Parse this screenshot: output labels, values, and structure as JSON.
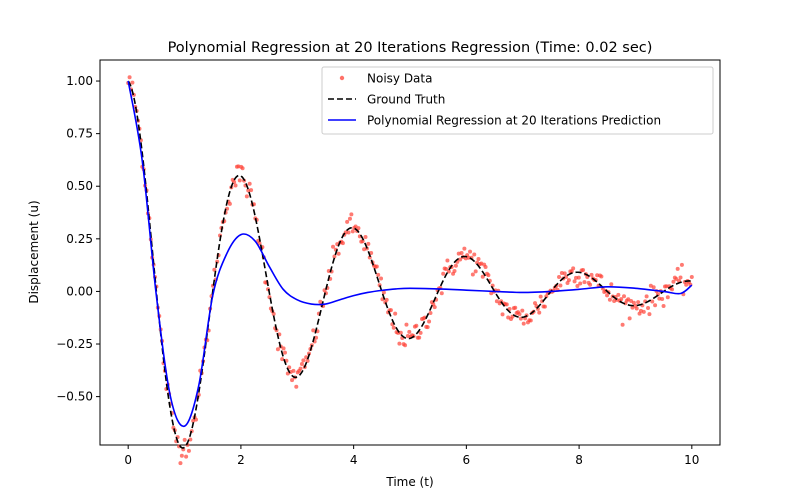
{
  "chart_data": {
    "type": "line",
    "title": "Polynomial Regression at 20 Iterations Regression (Time: 0.02 sec)",
    "xlabel": "Time (t)",
    "ylabel": "Displacement (u)",
    "xlim": [
      -0.5,
      10.5
    ],
    "ylim": [
      -0.73,
      1.1
    ],
    "xticks": [
      0,
      2,
      4,
      6,
      8,
      10
    ],
    "xtick_labels": [
      "0",
      "2",
      "4",
      "6",
      "8",
      "10"
    ],
    "yticks": [
      -0.5,
      -0.25,
      0.0,
      0.25,
      0.5,
      0.75,
      1.0
    ],
    "ytick_labels": [
      "−0.50",
      "−0.25",
      "0.00",
      "0.25",
      "0.50",
      "0.75",
      "1.00"
    ],
    "grid": false,
    "legend_position": "top-right",
    "series": [
      {
        "name": "Noisy Data",
        "style": "scatter",
        "color": "#ff4136",
        "x_range": [
          0,
          10
        ],
        "n_points": 400,
        "model": "exp(-0.3 t) * cos(pi t) + noise",
        "noise_sd": 0.03
      },
      {
        "name": "Ground Truth",
        "style": "dashed",
        "color": "#000000",
        "x": [
          0,
          0.25,
          0.5,
          0.75,
          1.0,
          1.25,
          1.5,
          1.75,
          2.0,
          2.25,
          2.5,
          2.75,
          3.0,
          3.25,
          3.5,
          3.75,
          4.0,
          4.25,
          4.5,
          4.75,
          5.0,
          5.25,
          5.5,
          5.75,
          6.0,
          6.25,
          6.5,
          6.75,
          7.0,
          7.25,
          7.5,
          7.75,
          8.0,
          8.25,
          8.5,
          8.75,
          9.0,
          9.25,
          9.5,
          9.75,
          10.0
        ],
        "y": [
          1.0,
          0.656,
          -0.0,
          -0.565,
          -0.741,
          -0.486,
          0.0,
          0.418,
          0.549,
          0.36,
          -0.0,
          -0.31,
          -0.407,
          -0.267,
          0.0,
          0.229,
          0.301,
          0.198,
          -0.0,
          -0.17,
          -0.223,
          -0.146,
          0.0,
          0.126,
          0.165,
          0.108,
          -0.0,
          -0.093,
          -0.122,
          -0.08,
          0.0,
          0.069,
          0.091,
          0.06,
          -0.0,
          -0.051,
          -0.067,
          -0.044,
          0.0,
          0.038,
          0.05
        ]
      },
      {
        "name": "Polynomial Regression at 20 Iterations Prediction",
        "style": "solid",
        "color": "#0000ff",
        "x": [
          0,
          0.25,
          0.5,
          0.75,
          1.0,
          1.25,
          1.5,
          1.75,
          2.0,
          2.25,
          2.5,
          2.75,
          3.0,
          3.25,
          3.5,
          3.75,
          4.0,
          4.25,
          4.5,
          4.75,
          5.0,
          5.5,
          6.0,
          6.5,
          7.0,
          7.5,
          8.0,
          8.5,
          9.0,
          9.5,
          9.8,
          10.0
        ],
        "y": [
          1.0,
          0.62,
          -0.02,
          -0.5,
          -0.64,
          -0.45,
          -0.02,
          0.18,
          0.27,
          0.24,
          0.12,
          0.01,
          -0.04,
          -0.06,
          -0.06,
          -0.04,
          -0.02,
          -0.005,
          0.005,
          0.012,
          0.015,
          0.012,
          0.006,
          0.0,
          -0.005,
          0.0,
          0.01,
          0.022,
          0.015,
          0.0,
          -0.01,
          0.03
        ]
      }
    ]
  }
}
